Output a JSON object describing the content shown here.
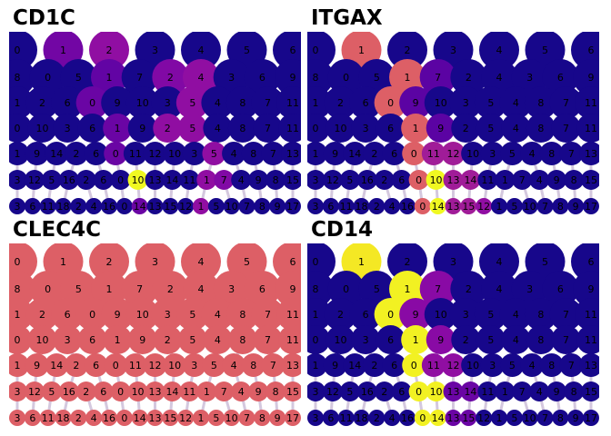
{
  "chart_data": {
    "type": "scatter",
    "description_kind": "paga-style cluster graph colored by gene expression",
    "row_ranks": [
      1,
      2,
      3,
      4,
      5,
      6,
      7
    ],
    "row_labels": [
      [
        "0",
        "1",
        "2",
        "3",
        "4",
        "5",
        "6"
      ],
      [
        "8",
        "0",
        "5",
        "1",
        "7",
        "2",
        "4",
        "3",
        "6",
        "9"
      ],
      [
        "1",
        "2",
        "6",
        "0",
        "9",
        "10",
        "3",
        "5",
        "4",
        "8",
        "7",
        "11"
      ],
      [
        "0",
        "10",
        "3",
        "6",
        "1",
        "9",
        "2",
        "5",
        "4",
        "8",
        "7",
        "11"
      ],
      [
        "1",
        "9",
        "14",
        "2",
        "6",
        "0",
        "11",
        "12",
        "10",
        "3",
        "5",
        "4",
        "8",
        "7",
        "13"
      ],
      [
        "3",
        "12",
        "5",
        "16",
        "2",
        "6",
        "0",
        "10",
        "13",
        "14",
        "11",
        "1",
        "7",
        "4",
        "9",
        "8",
        "15"
      ],
      [
        "3",
        "6",
        "11",
        "18",
        "2",
        "4",
        "16",
        "0",
        "14",
        "13",
        "15",
        "12",
        "1",
        "5",
        "10",
        "7",
        "8",
        "9",
        "17"
      ]
    ],
    "size_by_rank": [
      22,
      20,
      18,
      16,
      13,
      11,
      9
    ],
    "color_scale": {
      "min": 0,
      "max": 1,
      "colors": [
        "#0d0887",
        "#5402a3",
        "#8b0aa5",
        "#b93289",
        "#db5c68",
        "#f48849",
        "#febd2a",
        "#f0f921"
      ]
    },
    "panels": [
      {
        "title": "CD1C",
        "default": 0.02,
        "values": [
          {
            "0": 0.02,
            "1": 0.22,
            "2": 0.3,
            "3": 0.02,
            "4": 0.02,
            "5": 0.02,
            "6": 0.02
          },
          {
            "8": 0.02,
            "0": 0.02,
            "5": 0.02,
            "1": 0.18,
            "7": 0.02,
            "2": 0.26,
            "4": 0.3,
            "3": 0.02,
            "6": 0.02,
            "9": 0.02
          },
          {
            "0": 0.2,
            "2": 0.02,
            "5": 0.3,
            "10": 0.02
          },
          {
            "1": 0.2,
            "2": 0.3,
            "5": 0.3
          },
          {
            "0": 0.2,
            "5": 0.3
          },
          {
            "10": 1.0,
            "1": 0.3,
            "7": 0.26
          },
          {
            "14": 0.2,
            "1": 0.3
          }
        ]
      },
      {
        "title": "ITGAX",
        "default": 0.02,
        "values": [
          {
            "1": 0.58,
            "2": 0.02
          },
          {
            "1": 0.58,
            "7": 0.16
          },
          {
            "0": 0.58,
            "9": 0.16
          },
          {
            "1": 0.58,
            "9": 0.16
          },
          {
            "0": 0.58,
            "11": 0.35,
            "12": 0.35
          },
          {
            "0": 0.58,
            "10": 1.0,
            "13": 0.35,
            "14": 0.35
          },
          {
            "0": 0.58,
            "14": 1.0,
            "13": 0.35,
            "15": 0.35,
            "12": 0.3
          }
        ]
      },
      {
        "title": "CLEC4C",
        "default": 0.58,
        "values": [
          {},
          {},
          {},
          {},
          {},
          {},
          {}
        ]
      },
      {
        "title": "CD14",
        "default": 0.02,
        "values": [
          {
            "1": 0.96,
            "2": 0.02
          },
          {
            "1": 0.98,
            "7": 0.28
          },
          {
            "0": 0.98,
            "9": 0.28
          },
          {
            "1": 0.98,
            "9": 0.28
          },
          {
            "0": 0.98,
            "11": 0.3,
            "12": 0.3
          },
          {
            "0": 0.98,
            "10": 0.98,
            "13": 0.2,
            "14": 0.2
          },
          {
            "0": 0.98,
            "14": 0.98,
            "13": 0.2,
            "15": 0.2
          }
        ]
      }
    ],
    "xlabel": "",
    "ylabel": "",
    "grid": false,
    "legend": "none"
  }
}
